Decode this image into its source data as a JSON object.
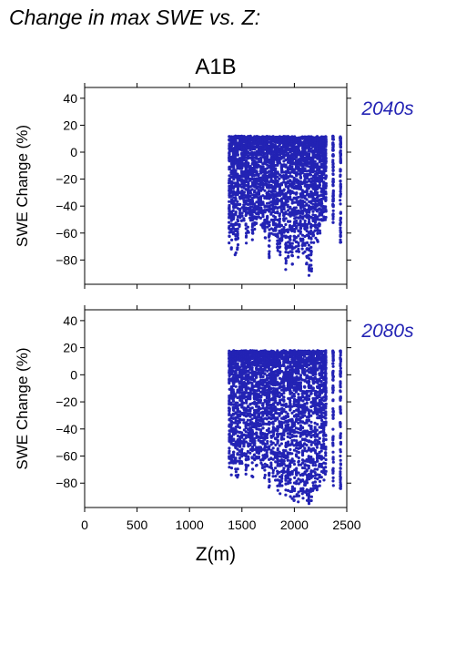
{
  "page": {
    "title": "Change in max SWE vs. Z:",
    "scenario": "A1B"
  },
  "style": {
    "point_color": "#2323b4",
    "label_color": "#2323b4",
    "axis_color": "#000000"
  },
  "chart_data": [
    {
      "type": "scatter",
      "period_label": "2040s",
      "xlabel": "",
      "ylabel": "SWE Change (%)",
      "xlim": [
        0,
        2500
      ],
      "ylim": [
        -98,
        48
      ],
      "xticks": [
        0,
        500,
        1000,
        1500,
        2000,
        2500
      ],
      "yticks": [
        -80,
        -60,
        -40,
        -20,
        0,
        20,
        40
      ],
      "show_xtick_labels": false,
      "station_columns": [
        {
          "z": 1380,
          "min": -62
        },
        {
          "z": 1400,
          "min": -70
        },
        {
          "z": 1420,
          "min": -58
        },
        {
          "z": 1440,
          "min": -72
        },
        {
          "z": 1460,
          "min": -68
        },
        {
          "z": 1480,
          "min": -50
        },
        {
          "z": 1500,
          "min": -47
        },
        {
          "z": 1520,
          "min": -45
        },
        {
          "z": 1540,
          "min": -62
        },
        {
          "z": 1560,
          "min": -55
        },
        {
          "z": 1580,
          "min": -48
        },
        {
          "z": 1600,
          "min": -60
        },
        {
          "z": 1620,
          "min": -52
        },
        {
          "z": 1640,
          "min": -50
        },
        {
          "z": 1660,
          "min": -45
        },
        {
          "z": 1680,
          "min": -48
        },
        {
          "z": 1700,
          "min": -55
        },
        {
          "z": 1720,
          "min": -60
        },
        {
          "z": 1740,
          "min": -52
        },
        {
          "z": 1760,
          "min": -77
        },
        {
          "z": 1780,
          "min": -55
        },
        {
          "z": 1800,
          "min": -58
        },
        {
          "z": 1820,
          "min": -60
        },
        {
          "z": 1840,
          "min": -70
        },
        {
          "z": 1860,
          "min": -72
        },
        {
          "z": 1880,
          "min": -65
        },
        {
          "z": 1900,
          "min": -58
        },
        {
          "z": 1920,
          "min": -82
        },
        {
          "z": 1940,
          "min": -75
        },
        {
          "z": 1960,
          "min": -70
        },
        {
          "z": 1980,
          "min": -78
        },
        {
          "z": 2000,
          "min": -65
        },
        {
          "z": 2020,
          "min": -68
        },
        {
          "z": 2040,
          "min": -72
        },
        {
          "z": 2060,
          "min": -60
        },
        {
          "z": 2080,
          "min": -70
        },
        {
          "z": 2100,
          "min": -68
        },
        {
          "z": 2120,
          "min": -80
        },
        {
          "z": 2140,
          "min": -86
        },
        {
          "z": 2160,
          "min": -84
        },
        {
          "z": 2180,
          "min": -62
        },
        {
          "z": 2200,
          "min": -58
        },
        {
          "z": 2220,
          "min": -62
        },
        {
          "z": 2240,
          "min": -55
        },
        {
          "z": 2260,
          "min": -50
        },
        {
          "z": 2280,
          "min": -48
        },
        {
          "z": 2300,
          "min": -45
        },
        {
          "z": 2370,
          "min": -50
        },
        {
          "z": 2440,
          "min": -65
        }
      ],
      "y_max_envelope": 12
    },
    {
      "type": "scatter",
      "period_label": "2080s",
      "xlabel": "Z(m)",
      "ylabel": "SWE Change (%)",
      "xlim": [
        0,
        2500
      ],
      "ylim": [
        -98,
        48
      ],
      "xticks": [
        0,
        500,
        1000,
        1500,
        2000,
        2500
      ],
      "yticks": [
        -80,
        -60,
        -40,
        -20,
        0,
        20,
        40
      ],
      "show_xtick_labels": true,
      "station_columns": [
        {
          "z": 1380,
          "min": -65
        },
        {
          "z": 1400,
          "min": -68
        },
        {
          "z": 1420,
          "min": -62
        },
        {
          "z": 1440,
          "min": -70
        },
        {
          "z": 1460,
          "min": -72
        },
        {
          "z": 1480,
          "min": -64
        },
        {
          "z": 1500,
          "min": -60
        },
        {
          "z": 1520,
          "min": -58
        },
        {
          "z": 1540,
          "min": -68
        },
        {
          "z": 1560,
          "min": -62
        },
        {
          "z": 1580,
          "min": -55
        },
        {
          "z": 1600,
          "min": -70
        },
        {
          "z": 1620,
          "min": -60
        },
        {
          "z": 1640,
          "min": -62
        },
        {
          "z": 1660,
          "min": -58
        },
        {
          "z": 1680,
          "min": -60
        },
        {
          "z": 1700,
          "min": -64
        },
        {
          "z": 1720,
          "min": -72
        },
        {
          "z": 1740,
          "min": -62
        },
        {
          "z": 1760,
          "min": -78
        },
        {
          "z": 1780,
          "min": -66
        },
        {
          "z": 1800,
          "min": -70
        },
        {
          "z": 1820,
          "min": -72
        },
        {
          "z": 1840,
          "min": -80
        },
        {
          "z": 1860,
          "min": -82
        },
        {
          "z": 1880,
          "min": -76
        },
        {
          "z": 1900,
          "min": -70
        },
        {
          "z": 1920,
          "min": -85
        },
        {
          "z": 1940,
          "min": -80
        },
        {
          "z": 1960,
          "min": -84
        },
        {
          "z": 1980,
          "min": -86
        },
        {
          "z": 2000,
          "min": -90
        },
        {
          "z": 2020,
          "min": -84
        },
        {
          "z": 2040,
          "min": -88
        },
        {
          "z": 2060,
          "min": -80
        },
        {
          "z": 2080,
          "min": -86
        },
        {
          "z": 2100,
          "min": -84
        },
        {
          "z": 2120,
          "min": -88
        },
        {
          "z": 2140,
          "min": -92
        },
        {
          "z": 2160,
          "min": -88
        },
        {
          "z": 2180,
          "min": -84
        },
        {
          "z": 2200,
          "min": -80
        },
        {
          "z": 2220,
          "min": -82
        },
        {
          "z": 2240,
          "min": -78
        },
        {
          "z": 2260,
          "min": -70
        },
        {
          "z": 2280,
          "min": -72
        },
        {
          "z": 2300,
          "min": -68
        },
        {
          "z": 2370,
          "min": -76
        },
        {
          "z": 2440,
          "min": -82
        }
      ],
      "y_max_envelope": 18
    }
  ]
}
